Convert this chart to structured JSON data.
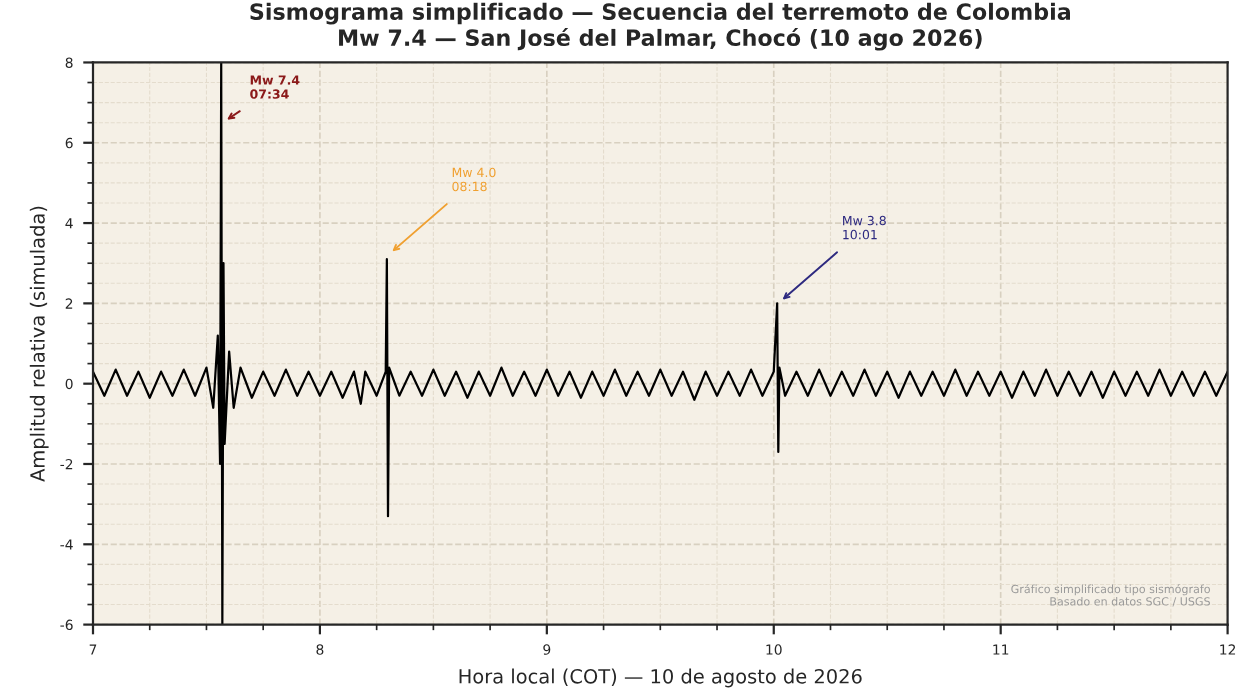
{
  "chart_data": {
    "type": "line",
    "title": "Sismograma simplificado — Secuencia del terremoto de Colombia\nMw 7.4 — San José del Palmar, Chocó (10 ago 2026)",
    "xlabel": "Hora local (COT) — 10 de agosto de 2026",
    "ylabel": "Amplitud relativa (simulada)",
    "series": [
      {
        "color": "#000000",
        "x": [
          7.0,
          7.05,
          7.1,
          7.15,
          7.2,
          7.25,
          7.3,
          7.35,
          7.4,
          7.45,
          7.5,
          7.53,
          7.55,
          7.56,
          7.565,
          7.57,
          7.575,
          7.58,
          7.6,
          7.62,
          7.65,
          7.7,
          7.75,
          7.8,
          7.85,
          7.9,
          7.95,
          8.0,
          8.05,
          8.1,
          8.15,
          8.18,
          8.2,
          8.25,
          8.29,
          8.295,
          8.3,
          8.305,
          8.35,
          8.4,
          8.45,
          8.5,
          8.55,
          8.6,
          8.65,
          8.7,
          8.75,
          8.8,
          8.85,
          8.9,
          8.95,
          9.0,
          9.05,
          9.1,
          9.15,
          9.2,
          9.25,
          9.3,
          9.35,
          9.4,
          9.45,
          9.5,
          9.55,
          9.6,
          9.65,
          9.7,
          9.75,
          9.8,
          9.85,
          9.9,
          9.95,
          10.0,
          10.015,
          10.02,
          10.025,
          10.05,
          10.1,
          10.15,
          10.2,
          10.25,
          10.3,
          10.35,
          10.4,
          10.45,
          10.5,
          10.55,
          10.6,
          10.65,
          10.7,
          10.75,
          10.8,
          10.85,
          10.9,
          10.95,
          11.0,
          11.05,
          11.1,
          11.15,
          11.2,
          11.25,
          11.3,
          11.35,
          11.4,
          11.45,
          11.5,
          11.55,
          11.6,
          11.65,
          11.7,
          11.75,
          11.8,
          11.85,
          11.9,
          11.95,
          12.0
        ],
        "values": [
          0.3,
          -0.3,
          0.35,
          -0.3,
          0.3,
          -0.35,
          0.3,
          -0.3,
          0.35,
          -0.3,
          0.4,
          -0.6,
          1.2,
          -2.0,
          8,
          -6,
          3,
          -1.5,
          0.8,
          -0.6,
          0.4,
          -0.35,
          0.3,
          -0.3,
          0.35,
          -0.3,
          0.3,
          -0.3,
          0.3,
          -0.35,
          0.3,
          -0.5,
          0.3,
          -0.3,
          0.3,
          3.1,
          -3.3,
          0.4,
          -0.3,
          0.3,
          -0.3,
          0.35,
          -0.3,
          0.3,
          -0.35,
          0.3,
          -0.3,
          0.4,
          -0.3,
          0.3,
          -0.3,
          0.35,
          -0.3,
          0.3,
          -0.35,
          0.3,
          -0.3,
          0.35,
          -0.3,
          0.3,
          -0.3,
          0.35,
          -0.3,
          0.3,
          -0.4,
          0.3,
          -0.3,
          0.3,
          -0.3,
          0.35,
          -0.3,
          0.3,
          2.0,
          -1.7,
          0.4,
          -0.3,
          0.3,
          -0.3,
          0.35,
          -0.3,
          0.3,
          -0.3,
          0.35,
          -0.3,
          0.3,
          -0.35,
          0.3,
          -0.3,
          0.3,
          -0.3,
          0.35,
          -0.3,
          0.3,
          -0.3,
          0.3,
          -0.35,
          0.3,
          -0.3,
          0.35,
          -0.3,
          0.3,
          -0.3,
          0.3,
          -0.35,
          0.3,
          -0.3,
          0.3,
          -0.3,
          0.35,
          -0.3,
          0.3,
          -0.3,
          0.3,
          -0.3,
          0.3
        ]
      }
    ],
    "annotations": [
      {
        "text": "Mw 7.4\n07:34",
        "x": 7.57,
        "y": 6.5
      },
      {
        "text": "Mw 4.0\n08:18",
        "x": 8.3,
        "y": 3.2
      },
      {
        "text": "Mw 3.8\n10:01",
        "x": 10.02,
        "y": 2.0
      },
      "Gráfico simplificado tipo sismógrafo\nBasado en datos SGC / USGS"
    ],
    "xlim": [
      7,
      12
    ],
    "ylim": [
      -6,
      8
    ],
    "xticks": [
      7,
      8,
      9,
      10,
      11,
      12
    ],
    "yticks": [
      -6,
      -4,
      -2,
      0,
      2,
      4,
      6,
      8
    ],
    "grid": true,
    "marker": "none",
    "line_style": "solid"
  }
}
